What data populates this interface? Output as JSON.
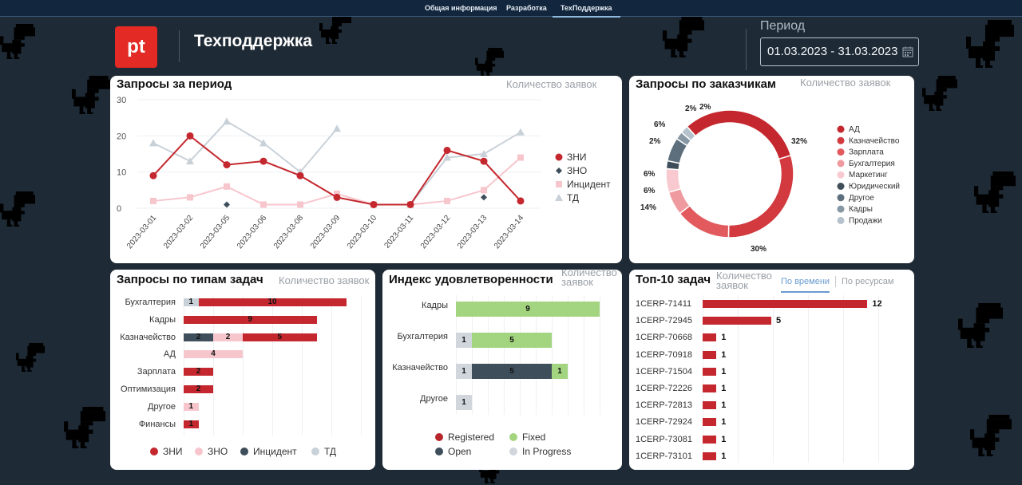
{
  "colors": {
    "zni": "#c4282e",
    "zno": "#f7c6cd",
    "incident": "#3f4e5b",
    "td": "#c9d1d8",
    "registered": "#b8262c",
    "fixed": "#a3d47f",
    "open": "#3f4e5b",
    "in_progress": "#d0d6dc",
    "brand": "#e42a24"
  },
  "nav": {
    "tabs": [
      "Общая информация",
      "Разработка",
      "ТехПоддержка"
    ]
  },
  "header": {
    "logo_text": "pt",
    "title": "Техподдержка"
  },
  "period": {
    "label": "Период",
    "value": "01.03.2023 - 31.03.2023"
  },
  "requests_panel": {
    "title": "Запросы за период",
    "subtitle": "Количество заявок",
    "chart_data": {
      "type": "line",
      "title": "Запросы за период",
      "ylabel": "Количество заявок",
      "ylim": [
        0,
        30
      ],
      "yticks": [
        "30",
        "20",
        "10",
        "0"
      ],
      "categories": [
        "2023-03-01",
        "2023-03-02",
        "2023-03-05",
        "2023-03-06",
        "2023-03-08",
        "2023-03-09",
        "2023-03-10",
        "2023-03-11",
        "2023-03-12",
        "2023-03-13",
        "2023-03-14"
      ],
      "series": [
        {
          "name": "ЗНИ",
          "values": [
            9,
            20,
            12,
            13,
            9,
            3,
            1,
            1,
            16,
            13,
            2
          ]
        },
        {
          "name": "ЗНО",
          "values": [
            null,
            null,
            1,
            null,
            null,
            null,
            null,
            null,
            null,
            3,
            null
          ]
        },
        {
          "name": "Инцидент",
          "values": [
            2,
            3,
            6,
            1,
            1,
            4,
            1,
            1,
            2,
            5,
            14
          ]
        },
        {
          "name": "ТД",
          "values": [
            18,
            13,
            24,
            18,
            10,
            22,
            null,
            1,
            14,
            15,
            21
          ]
        }
      ]
    }
  },
  "customers_panel": {
    "title": "Запросы по заказчикам",
    "subtitle": "Количество заявок",
    "chart_data": {
      "type": "pie",
      "labels": [
        "АД",
        "Казначейство",
        "Зарплата",
        "Бухгалтерия",
        "Маркетинг",
        "Юридический",
        "Другое",
        "Кадры",
        "Продажи"
      ],
      "values": [
        32,
        30,
        14,
        6,
        6,
        2,
        6,
        2,
        2
      ],
      "value_labels": [
        "32%",
        "30%",
        "14%",
        "6%",
        "6%",
        "2%",
        "6%",
        "2%",
        "2%"
      ]
    }
  },
  "types_panel": {
    "title": "Запросы по типам задач",
    "subtitle": "Количество заявок",
    "legend": [
      "ЗНИ",
      "ЗНО",
      "Инцидент",
      "ТД"
    ],
    "chart_data": {
      "type": "bar",
      "categories": [
        "Бухгалтерия",
        "Кадры",
        "Казначейство",
        "АД",
        "Зарплата",
        "Оптимизация",
        "Другое",
        "Финансы"
      ],
      "series": [
        {
          "name": "ТД",
          "values": [
            1,
            0,
            0,
            0,
            0,
            0,
            0,
            0
          ]
        },
        {
          "name": "Инцидент",
          "values": [
            0,
            0,
            2,
            0,
            0,
            0,
            0,
            0
          ]
        },
        {
          "name": "ЗНО",
          "values": [
            0,
            0,
            2,
            4,
            0,
            0,
            1,
            0
          ]
        },
        {
          "name": "ЗНИ",
          "values": [
            10,
            9,
            5,
            0,
            2,
            2,
            0,
            1
          ]
        }
      ]
    }
  },
  "satisfaction_panel": {
    "title": "Индекс удовлетворенности",
    "subtitle": "Количество заявок",
    "legend": [
      "Registered",
      "Fixed",
      "Open",
      "In Progress"
    ],
    "chart_data": {
      "type": "bar",
      "categories": [
        "Кадры",
        "Бухгалтерия",
        "Казначейство",
        "Другое"
      ],
      "series": [
        {
          "name": "In Progress",
          "values": [
            0,
            1,
            1,
            1
          ]
        },
        {
          "name": "Open",
          "values": [
            0,
            0,
            5,
            0
          ]
        },
        {
          "name": "Fixed",
          "values": [
            9,
            5,
            1,
            0
          ]
        }
      ]
    }
  },
  "top_panel": {
    "title": "Топ-10 задач",
    "subtitle": "Количество заявок",
    "tab_time": "По времени",
    "tab_resources": "По ресурсам",
    "chart_data": {
      "type": "bar",
      "categories": [
        "1CERP-71411",
        "1CERP-72945",
        "1CERP-70668",
        "1CERP-70918",
        "1CERP-71504",
        "1CERP-72226",
        "1CERP-72813",
        "1CERP-72924",
        "1CERP-73081",
        "1CERP-73101"
      ],
      "values": [
        12,
        5,
        1,
        1,
        1,
        1,
        1,
        1,
        1,
        1
      ]
    }
  }
}
